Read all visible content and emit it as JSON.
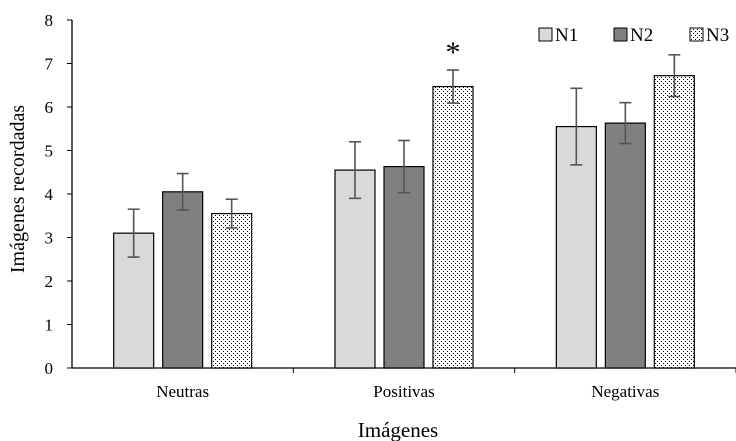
{
  "chart_data": {
    "type": "bar",
    "title": "",
    "xlabel": "Imágenes",
    "ylabel": "Imágenes recordadas",
    "ylim": [
      0,
      8
    ],
    "yticks": [
      0,
      1,
      2,
      3,
      4,
      5,
      6,
      7,
      8
    ],
    "categories": [
      "Neutras",
      "Positivas",
      "Negativas"
    ],
    "grid": false,
    "legend_position": "top-right",
    "series": [
      {
        "name": "N1",
        "values": [
          3.1,
          4.55,
          5.55
        ],
        "errors": [
          0.55,
          0.65,
          0.88
        ],
        "color": "#d9d9d9",
        "pattern": "solid"
      },
      {
        "name": "N2",
        "values": [
          4.05,
          4.63,
          5.63
        ],
        "errors": [
          0.42,
          0.6,
          0.47
        ],
        "color": "#808080",
        "pattern": "solid"
      },
      {
        "name": "N3",
        "values": [
          3.55,
          6.47,
          6.72
        ],
        "errors": [
          0.33,
          0.38,
          0.48
        ],
        "color": "#ffffff",
        "pattern": "dots"
      }
    ],
    "annotations": [
      {
        "text": "*",
        "category": "Positivas",
        "series": "N3"
      }
    ]
  }
}
